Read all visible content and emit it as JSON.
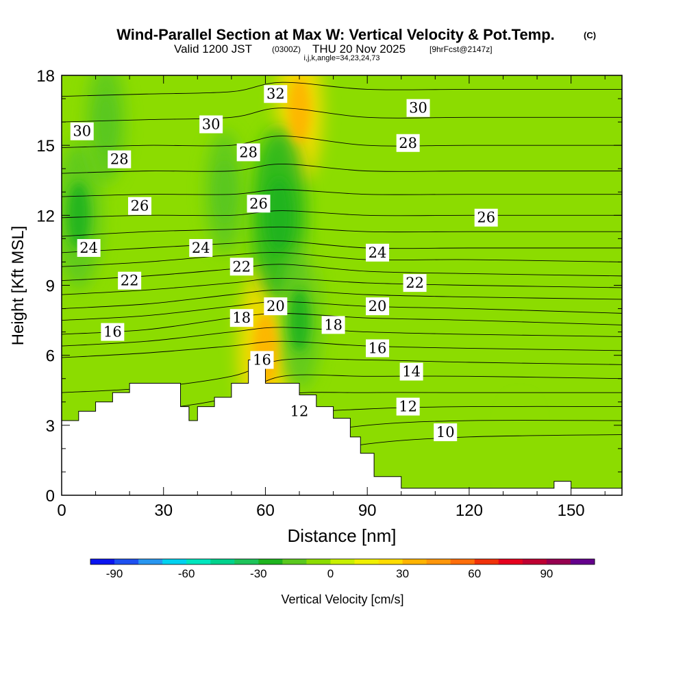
{
  "chart_data": {
    "type": "filled_contour_cross_section",
    "title": "Wind-Parallel Section at Max W: Vertical Velocity & Pot.Temp.",
    "title_units": "(C)",
    "subtitle_valid": "Valid 1200 JST",
    "subtitle_utc": "(0300Z)",
    "subtitle_date": "THU 20 Nov 2025",
    "subtitle_fcst": "[9hrFcst@2147z]",
    "subtitle_params": "i,j,k,angle=34,23,24,73",
    "xlabel": "Distance [nm]",
    "ylabel": "Height [Kft MSL]",
    "xlim": [
      0,
      165
    ],
    "ylim": [
      0,
      18
    ],
    "x_ticks": [
      "0",
      "30",
      "60",
      "90",
      "120",
      "150"
    ],
    "x_tick_values": [
      0,
      30,
      60,
      90,
      120,
      150
    ],
    "y_ticks": [
      "0",
      "3",
      "6",
      "9",
      "12",
      "15",
      "18"
    ],
    "y_tick_values": [
      0,
      3,
      6,
      9,
      12,
      15,
      18
    ],
    "colorbar": {
      "label": "Vertical Velocity [cm/s]",
      "ticks": [
        "-90",
        "-60",
        "-30",
        "0",
        "30",
        "60",
        "90"
      ],
      "tick_values": [
        -90,
        -60,
        -30,
        0,
        30,
        60,
        90
      ],
      "min": -100,
      "max": 110,
      "step": 10,
      "colors": [
        "#0a14f0",
        "#1e50f0",
        "#2896f0",
        "#00d2f0",
        "#00e6be",
        "#00d28c",
        "#1ec35a",
        "#1eb41e",
        "#5ac81e",
        "#8cdc00",
        "#c8f000",
        "#f0f000",
        "#ffdc00",
        "#ffb400",
        "#ff960a",
        "#ff6e0a",
        "#f0320a",
        "#e6001e",
        "#be0032",
        "#960050",
        "#64008c"
      ]
    },
    "terrain_profile_kft": [
      [
        0,
        3.2
      ],
      [
        5,
        3.6
      ],
      [
        10,
        4.0
      ],
      [
        15,
        4.4
      ],
      [
        20,
        4.8
      ],
      [
        25,
        4.8
      ],
      [
        30,
        4.8
      ],
      [
        35,
        3.8
      ],
      [
        37.5,
        3.2
      ],
      [
        40,
        3.8
      ],
      [
        45,
        4.2
      ],
      [
        50,
        4.8
      ],
      [
        55,
        5.8
      ],
      [
        58,
        5.8
      ],
      [
        60,
        4.8
      ],
      [
        65,
        4.8
      ],
      [
        70,
        4.3
      ],
      [
        75,
        3.8
      ],
      [
        80,
        3.3
      ],
      [
        85,
        2.5
      ],
      [
        88,
        1.8
      ],
      [
        92,
        0.8
      ],
      [
        100,
        0.3
      ],
      [
        140,
        0.3
      ],
      [
        145,
        0.6
      ],
      [
        150,
        0.3
      ],
      [
        165,
        0.3
      ]
    ],
    "vertical_velocity_features": [
      {
        "type": "updraft",
        "x": 60,
        "y": 6.2,
        "value": 25
      },
      {
        "type": "updraft",
        "x": 70,
        "y": 16.5,
        "value": 20
      },
      {
        "type": "updraft",
        "x": 68,
        "y": 9.0,
        "value": 10
      },
      {
        "type": "downdraft",
        "x": 64,
        "y": 12.0,
        "value": -25
      },
      {
        "type": "downdraft",
        "x": 70,
        "y": 7.5,
        "value": -18
      },
      {
        "type": "downdraft",
        "x": 5,
        "y": 12.0,
        "value": -20
      },
      {
        "type": "downdraft",
        "x": 13,
        "y": 16.0,
        "value": -15
      },
      {
        "type": "downdraft",
        "x": 48,
        "y": 13.0,
        "value": -15
      },
      {
        "type": "downdraft",
        "x": 135,
        "y": 2.0,
        "value": -10
      }
    ],
    "theta_contours_c": [
      {
        "level": 10,
        "ys": [
          0.5,
          0.6,
          0.8,
          1.5,
          2.2,
          2.5,
          2.6
        ]
      },
      {
        "level": 11,
        "ys": [
          1.0,
          1.2,
          1.5,
          2.4,
          3.0,
          3.2,
          3.2
        ]
      },
      {
        "level": 12,
        "ys": [
          1.6,
          1.9,
          2.4,
          3.4,
          3.7,
          3.8,
          3.8
        ]
      },
      {
        "level": 13,
        "ys": [
          2.3,
          2.7,
          3.3,
          4.3,
          4.4,
          4.4,
          4.4
        ]
      },
      {
        "level": 14,
        "ys": [
          3.1,
          3.6,
          4.2,
          5.1,
          5.1,
          5.1,
          5.0
        ]
      },
      {
        "level": 15,
        "ys": [
          4.4,
          4.6,
          5.1,
          5.8,
          5.8,
          5.7,
          5.6
        ]
      },
      {
        "level": 16,
        "ys": [
          5.9,
          6.1,
          6.4,
          6.6,
          6.4,
          6.3,
          6.2
        ]
      },
      {
        "level": 17,
        "ys": [
          6.4,
          6.6,
          7.0,
          7.2,
          7.0,
          6.9,
          6.8
        ]
      },
      {
        "level": 18,
        "ys": [
          6.9,
          7.1,
          7.6,
          7.8,
          7.6,
          7.5,
          7.3
        ]
      },
      {
        "level": 19,
        "ys": [
          7.5,
          7.7,
          8.1,
          8.3,
          8.1,
          8.0,
          7.8
        ]
      },
      {
        "level": 20,
        "ys": [
          8.0,
          8.2,
          8.6,
          8.8,
          8.6,
          8.5,
          8.4
        ]
      },
      {
        "level": 21,
        "ys": [
          8.6,
          8.8,
          9.1,
          9.3,
          9.1,
          9.0,
          8.9
        ]
      },
      {
        "level": 22,
        "ys": [
          9.2,
          9.4,
          9.7,
          9.9,
          9.6,
          9.5,
          9.4
        ]
      },
      {
        "level": 23,
        "ys": [
          9.8,
          10.0,
          10.3,
          10.4,
          10.1,
          10.1,
          10.0
        ]
      },
      {
        "level": 24,
        "ys": [
          10.4,
          10.6,
          10.8,
          10.9,
          10.6,
          10.6,
          10.6
        ]
      },
      {
        "level": 25,
        "ys": [
          11.1,
          11.3,
          11.4,
          11.5,
          11.3,
          11.3,
          11.3
        ]
      },
      {
        "level": 26,
        "ys": [
          11.9,
          12.0,
          12.0,
          12.2,
          12.0,
          12.0,
          12.0
        ]
      },
      {
        "level": 27,
        "ys": [
          12.8,
          12.9,
          12.9,
          13.1,
          12.9,
          12.9,
          12.9
        ]
      },
      {
        "level": 28,
        "ys": [
          13.8,
          13.9,
          13.9,
          14.2,
          13.9,
          13.9,
          13.9
        ]
      },
      {
        "level": 29,
        "ys": [
          14.9,
          15.0,
          15.0,
          15.4,
          15.0,
          15.0,
          15.0
        ]
      },
      {
        "level": 30,
        "ys": [
          16.0,
          16.1,
          16.2,
          16.6,
          16.2,
          16.2,
          16.2
        ]
      },
      {
        "level": 31,
        "ys": [
          17.1,
          17.2,
          17.3,
          17.7,
          17.4,
          17.4,
          17.4
        ]
      }
    ],
    "theta_contour_x_nodes": [
      0,
      25,
      50,
      65,
      90,
      120,
      165
    ],
    "contour_labels": [
      {
        "text": "30",
        "x": 6,
        "y": 15.6
      },
      {
        "text": "28",
        "x": 17,
        "y": 14.4
      },
      {
        "text": "26",
        "x": 23,
        "y": 12.4
      },
      {
        "text": "24",
        "x": 8,
        "y": 10.6
      },
      {
        "text": "22",
        "x": 20,
        "y": 9.2
      },
      {
        "text": "16",
        "x": 15,
        "y": 7.0
      },
      {
        "text": "30",
        "x": 44,
        "y": 15.9
      },
      {
        "text": "24",
        "x": 41,
        "y": 10.6
      },
      {
        "text": "32",
        "x": 63,
        "y": 17.2
      },
      {
        "text": "28",
        "x": 55,
        "y": 14.7
      },
      {
        "text": "26",
        "x": 58,
        "y": 12.5
      },
      {
        "text": "22",
        "x": 53,
        "y": 9.8
      },
      {
        "text": "18",
        "x": 53,
        "y": 7.6
      },
      {
        "text": "20",
        "x": 63,
        "y": 8.1
      },
      {
        "text": "16",
        "x": 59,
        "y": 5.8
      },
      {
        "text": "12",
        "x": 70,
        "y": 3.6
      },
      {
        "text": "30",
        "x": 105,
        "y": 16.6
      },
      {
        "text": "28",
        "x": 102,
        "y": 15.1
      },
      {
        "text": "26",
        "x": 125,
        "y": 11.9
      },
      {
        "text": "24",
        "x": 93,
        "y": 10.4
      },
      {
        "text": "22",
        "x": 104,
        "y": 9.1
      },
      {
        "text": "20",
        "x": 93,
        "y": 8.1
      },
      {
        "text": "18",
        "x": 80,
        "y": 7.3
      },
      {
        "text": "16",
        "x": 93,
        "y": 6.3
      },
      {
        "text": "14",
        "x": 103,
        "y": 5.3
      },
      {
        "text": "12",
        "x": 102,
        "y": 3.8
      },
      {
        "text": "10",
        "x": 113,
        "y": 2.7
      }
    ],
    "legend_position": "bottom"
  }
}
